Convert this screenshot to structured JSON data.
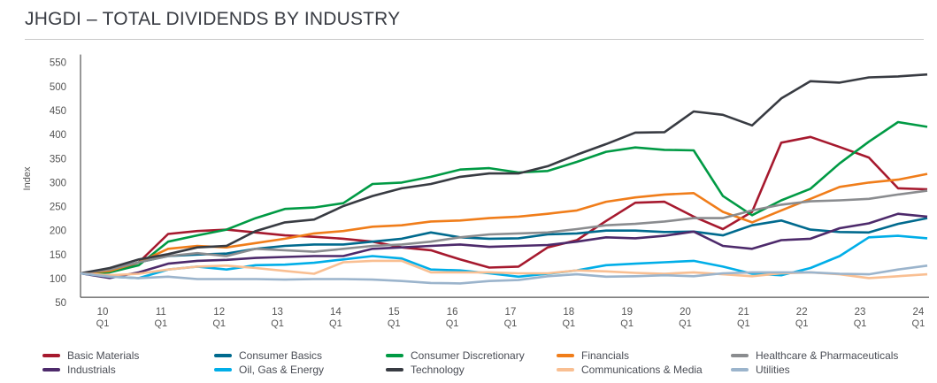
{
  "title": "JHGDI – TOTAL DIVIDENDS BY INDUSTRY",
  "chart_data": {
    "type": "line",
    "title": "JHGDI – TOTAL DIVIDENDS BY INDUSTRY",
    "xlabel": "",
    "ylabel": "Index",
    "ylim": [
      50,
      550
    ],
    "yticks": [
      50,
      100,
      150,
      200,
      250,
      300,
      350,
      400,
      450,
      500,
      550
    ],
    "xtick_years": [
      "10",
      "11",
      "12",
      "13",
      "14",
      "15",
      "16",
      "17",
      "18",
      "19",
      "20",
      "21",
      "22",
      "23",
      "24"
    ],
    "xtick_quarter": "Q1",
    "grid": false,
    "legend_position": "bottom",
    "x": [
      "09Q3",
      "10Q1",
      "10Q3",
      "11Q1",
      "11Q3",
      "12Q1",
      "12Q3",
      "13Q1",
      "13Q3",
      "14Q1",
      "14Q3",
      "15Q1",
      "15Q3",
      "16Q1",
      "16Q3",
      "17Q1",
      "17Q3",
      "18Q1",
      "18Q3",
      "19Q1",
      "19Q3",
      "20Q1",
      "20Q3",
      "21Q1",
      "21Q3",
      "22Q1",
      "22Q3",
      "23Q1",
      "23Q3",
      "24Q1"
    ],
    "series": [
      {
        "name": "Basic Materials",
        "color": "#a6192e",
        "values": [
          100,
          102,
          123,
          182,
          188,
          191,
          185,
          179,
          176,
          172,
          166,
          154,
          148,
          129,
          112,
          114,
          154,
          169,
          209,
          247,
          249,
          218,
          192,
          228,
          372,
          384,
          363,
          341,
          277,
          275
        ]
      },
      {
        "name": "Consumer Basics",
        "color": "#006a8e",
        "values": [
          100,
          108,
          123,
          136,
          139,
          141,
          151,
          157,
          160,
          160,
          166,
          172,
          185,
          175,
          172,
          173,
          181,
          183,
          189,
          189,
          186,
          187,
          179,
          200,
          210,
          191,
          186,
          185,
          203,
          215
        ]
      },
      {
        "name": "Consumer Discretionary",
        "color": "#009a44",
        "values": [
          100,
          102,
          117,
          166,
          179,
          191,
          215,
          234,
          237,
          246,
          286,
          289,
          301,
          316,
          319,
          310,
          313,
          332,
          353,
          362,
          357,
          356,
          261,
          221,
          252,
          276,
          329,
          374,
          415,
          405
        ]
      },
      {
        "name": "Financials",
        "color": "#f07d1a",
        "values": [
          100,
          105,
          123,
          151,
          157,
          154,
          163,
          172,
          183,
          188,
          197,
          200,
          208,
          210,
          215,
          218,
          224,
          231,
          249,
          258,
          264,
          267,
          228,
          206,
          231,
          255,
          280,
          289,
          295,
          307
        ]
      },
      {
        "name": "Healthcare & Pharmaceuticals",
        "color": "#8a8c8f",
        "values": [
          100,
          108,
          123,
          136,
          142,
          136,
          151,
          148,
          145,
          151,
          157,
          160,
          166,
          175,
          181,
          183,
          185,
          192,
          200,
          203,
          208,
          215,
          215,
          231,
          243,
          250,
          252,
          255,
          264,
          272
        ]
      },
      {
        "name": "Industrials",
        "color": "#4d2a6b",
        "values": [
          100,
          90,
          102,
          120,
          126,
          128,
          132,
          134,
          136,
          136,
          151,
          154,
          157,
          160,
          155,
          157,
          159,
          166,
          175,
          173,
          178,
          187,
          157,
          151,
          169,
          172,
          194,
          204,
          224,
          218
        ]
      },
      {
        "name": "Oil, Gas & Energy",
        "color": "#00aee8",
        "values": [
          100,
          93,
          90,
          108,
          114,
          108,
          117,
          118,
          122,
          129,
          136,
          131,
          108,
          106,
          100,
          93,
          99,
          106,
          117,
          120,
          123,
          126,
          114,
          99,
          96,
          111,
          136,
          175,
          178,
          173
        ]
      },
      {
        "name": "Technology",
        "color": "#383b42",
        "values": [
          100,
          111,
          129,
          140,
          154,
          157,
          188,
          206,
          212,
          240,
          261,
          277,
          286,
          301,
          308,
          308,
          323,
          347,
          369,
          393,
          394,
          437,
          430,
          408,
          464,
          500,
          497,
          508,
          510,
          514
        ]
      },
      {
        "name": "Communications & Media",
        "color": "#f9bf92",
        "values": [
          100,
          96,
          99,
          108,
          114,
          116,
          111,
          105,
          99,
          123,
          126,
          126,
          102,
          102,
          102,
          100,
          100,
          106,
          104,
          101,
          99,
          102,
          98,
          94,
          100,
          102,
          98,
          90,
          94,
          98
        ]
      },
      {
        "name": "Utilities",
        "color": "#9bb4cc",
        "values": [
          100,
          93,
          90,
          93,
          88,
          88,
          88,
          87,
          88,
          88,
          87,
          84,
          80,
          79,
          84,
          86,
          94,
          98,
          93,
          94,
          96,
          94,
          100,
          102,
          102,
          102,
          99,
          98,
          108,
          116
        ]
      }
    ]
  }
}
